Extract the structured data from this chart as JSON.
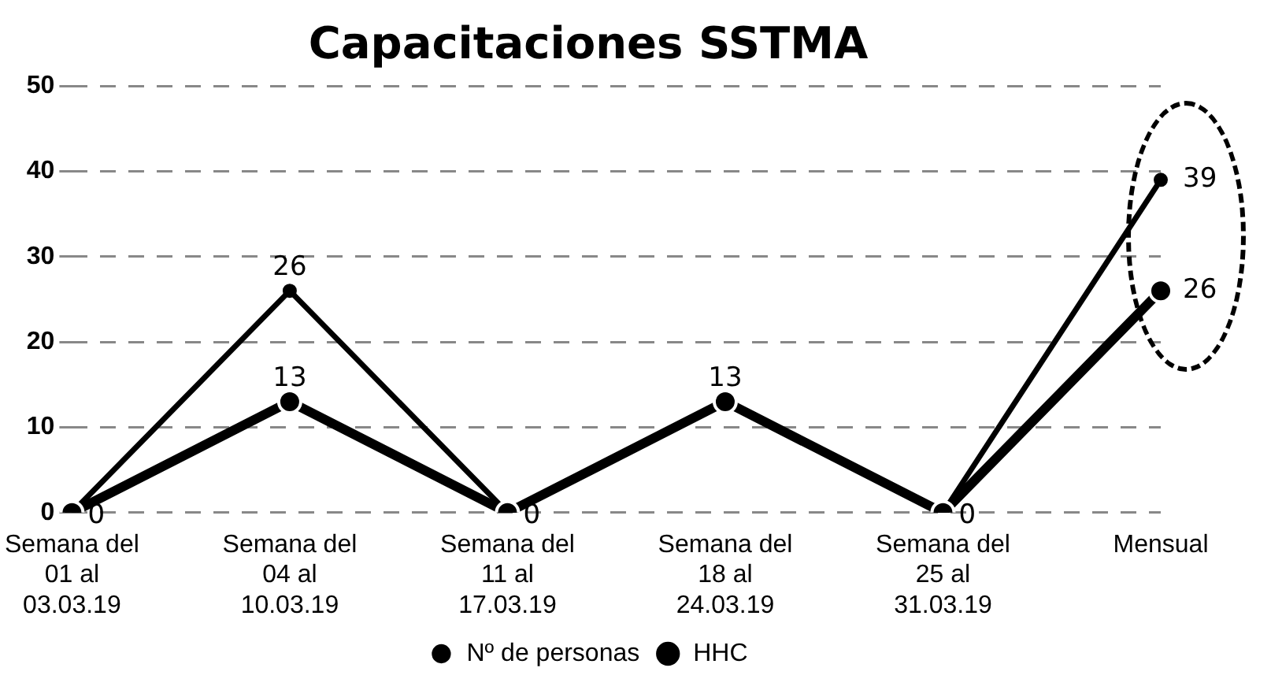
{
  "chart_data": {
    "type": "line",
    "title": "Capacitaciones SSTMA",
    "categories": [
      "Semana del 01 al 03.03.19",
      "Semana del 04 al 10.03.19",
      "Semana del 11 al 17.03.19",
      "Semana del 18 al 24.03.19",
      "Semana del 25 al 31.03.19",
      "Mensual"
    ],
    "series": [
      {
        "name": "Nº de personas",
        "color": "#000000",
        "values": [
          0,
          13,
          0,
          13,
          0,
          26
        ],
        "value_labels": [
          null,
          "13",
          null,
          "13",
          null,
          "26"
        ]
      },
      {
        "name": "HHC",
        "color": "#000000",
        "values": [
          0,
          26,
          0,
          13,
          0,
          39
        ],
        "value_labels": [
          "0",
          "26",
          "0",
          null,
          "0",
          "39"
        ]
      }
    ],
    "ylim": [
      0,
      50
    ],
    "yticks": [
      0,
      10,
      20,
      30,
      40,
      50
    ],
    "grid": "y",
    "legend": "bottom",
    "marker": "circle",
    "line_style": "solid"
  }
}
